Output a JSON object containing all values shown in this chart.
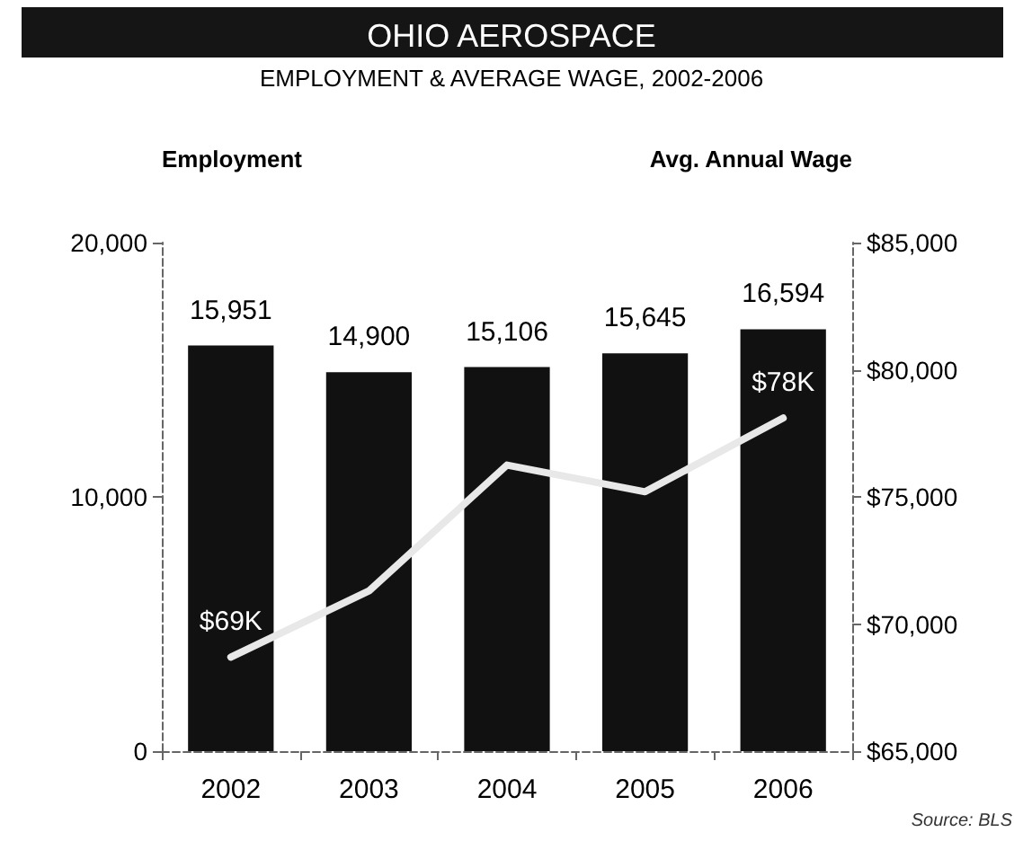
{
  "chart_data": {
    "type": "bar",
    "title": "OHIO AEROSPACE",
    "subtitle": "EMPLOYMENT & AVERAGE WAGE, 2002-2006",
    "ylabel": "Employment",
    "y2label": "Avg. Annual Wage",
    "categories": [
      "2002",
      "2003",
      "2004",
      "2005",
      "2006"
    ],
    "series": [
      {
        "color": "#111111",
        "values": [
          15951,
          14900,
          15106,
          15645,
          16594
        ],
        "value_labels": [
          "15,951",
          "14,900",
          "15,106",
          "15,645",
          "16,594"
        ]
      },
      {
        "type": "line",
        "axis": "y2",
        "color": "#e8e8e8",
        "values": [
          68700,
          71300,
          76250,
          75200,
          78100
        ],
        "value_labels": [
          "$69K",
          null,
          null,
          null,
          "$78K"
        ]
      }
    ],
    "ylim": [
      0,
      20000
    ],
    "yticks": [
      {
        "value": 0,
        "label": "0"
      },
      {
        "value": 10000,
        "label": "10,000"
      },
      {
        "value": 20000,
        "label": "20,000"
      }
    ],
    "y2lim": [
      65000,
      85000
    ],
    "y2ticks": [
      {
        "value": 65000,
        "label": "$65,000"
      },
      {
        "value": 70000,
        "label": "$70,000"
      },
      {
        "value": 75000,
        "label": "$75,000"
      },
      {
        "value": 80000,
        "label": "$80,000"
      },
      {
        "value": 85000,
        "label": "$85,000"
      }
    ],
    "annotations": [
      "Source: BLS"
    ],
    "grid": false,
    "marker": "none",
    "line_style": "solid"
  }
}
